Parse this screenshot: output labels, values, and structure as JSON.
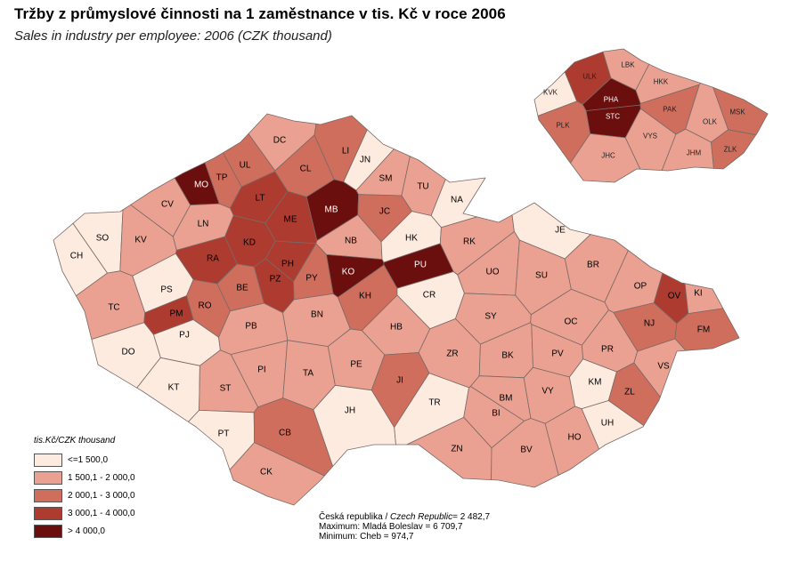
{
  "title": "Tržby z průmyslové činnosti na 1 zaměstnance v tis. Kč v roce 2006",
  "subtitle": "Sales in industry per employee: 2006 (CZK thousand)",
  "colors": {
    "class1": "#fdebe0",
    "class2": "#eba191",
    "class3": "#cf6e5d",
    "class4": "#ad3b2f",
    "class5": "#6a0e0e",
    "border": "#7a6a66"
  },
  "legend": {
    "title": "tis.Kč/CZK thousand",
    "items": [
      {
        "label": "<=1 500,0",
        "class": "class1"
      },
      {
        "label": "1 500,1 - 2 000,0",
        "class": "class2"
      },
      {
        "label": "2 000,1 - 3 000,0",
        "class": "class3"
      },
      {
        "label": "3 000,1 - 4 000,0",
        "class": "class4"
      },
      {
        "label": "> 4 000,0",
        "class": "class5"
      }
    ]
  },
  "stats": {
    "republic_label": "Česká republika /",
    "republic_label_en": "Czech Republic",
    "republic_value": "= 2 482,7",
    "max_line": "Maximum: Mladá Boleslav =  6 709,7",
    "min_line": "Minimum: Cheb = 974,7"
  },
  "districts": [
    {
      "code": "CH",
      "class": "class1"
    },
    {
      "code": "SO",
      "class": "class1"
    },
    {
      "code": "KV",
      "class": "class2"
    },
    {
      "code": "CV",
      "class": "class2"
    },
    {
      "code": "MO",
      "class": "class5"
    },
    {
      "code": "TP",
      "class": "class3"
    },
    {
      "code": "UL",
      "class": "class3"
    },
    {
      "code": "DC",
      "class": "class2"
    },
    {
      "code": "CL",
      "class": "class3"
    },
    {
      "code": "LI",
      "class": "class3"
    },
    {
      "code": "JN",
      "class": "class1"
    },
    {
      "code": "LT",
      "class": "class4"
    },
    {
      "code": "ME",
      "class": "class4"
    },
    {
      "code": "MB",
      "class": "class5"
    },
    {
      "code": "SM",
      "class": "class2"
    },
    {
      "code": "TU",
      "class": "class2"
    },
    {
      "code": "NA",
      "class": "class1"
    },
    {
      "code": "JC",
      "class": "class3"
    },
    {
      "code": "LN",
      "class": "class2"
    },
    {
      "code": "KD",
      "class": "class4"
    },
    {
      "code": "RA",
      "class": "class4"
    },
    {
      "code": "PH",
      "class": "class4"
    },
    {
      "code": "NB",
      "class": "class2"
    },
    {
      "code": "HK",
      "class": "class1"
    },
    {
      "code": "RK",
      "class": "class2"
    },
    {
      "code": "JE",
      "class": "class1"
    },
    {
      "code": "TC",
      "class": "class2"
    },
    {
      "code": "PS",
      "class": "class1"
    },
    {
      "code": "RO",
      "class": "class3"
    },
    {
      "code": "BE",
      "class": "class3"
    },
    {
      "code": "PZ",
      "class": "class4"
    },
    {
      "code": "PY",
      "class": "class3"
    },
    {
      "code": "KO",
      "class": "class5"
    },
    {
      "code": "PU",
      "class": "class5"
    },
    {
      "code": "KH",
      "class": "class3"
    },
    {
      "code": "CR",
      "class": "class1"
    },
    {
      "code": "UO",
      "class": "class2"
    },
    {
      "code": "SU",
      "class": "class2"
    },
    {
      "code": "BR",
      "class": "class2"
    },
    {
      "code": "OP",
      "class": "class2"
    },
    {
      "code": "OV",
      "class": "class4"
    },
    {
      "code": "KI",
      "class": "class2"
    },
    {
      "code": "PM",
      "class": "class4"
    },
    {
      "code": "PJ",
      "class": "class1"
    },
    {
      "code": "DO",
      "class": "class1"
    },
    {
      "code": "KT",
      "class": "class1"
    },
    {
      "code": "PB",
      "class": "class2"
    },
    {
      "code": "BN",
      "class": "class2"
    },
    {
      "code": "HB",
      "class": "class2"
    },
    {
      "code": "SY",
      "class": "class2"
    },
    {
      "code": "OC",
      "class": "class2"
    },
    {
      "code": "NJ",
      "class": "class3"
    },
    {
      "code": "FM",
      "class": "class3"
    },
    {
      "code": "PI",
      "class": "class2"
    },
    {
      "code": "TA",
      "class": "class2"
    },
    {
      "code": "PE",
      "class": "class2"
    },
    {
      "code": "ZR",
      "class": "class2"
    },
    {
      "code": "BK",
      "class": "class2"
    },
    {
      "code": "PV",
      "class": "class2"
    },
    {
      "code": "PR",
      "class": "class2"
    },
    {
      "code": "VS",
      "class": "class2"
    },
    {
      "code": "ST",
      "class": "class2"
    },
    {
      "code": "JI",
      "class": "class3"
    },
    {
      "code": "BM",
      "class": "class2"
    },
    {
      "code": "VY",
      "class": "class2"
    },
    {
      "code": "KM",
      "class": "class1"
    },
    {
      "code": "ZL",
      "class": "class3"
    },
    {
      "code": "JH",
      "class": "class1"
    },
    {
      "code": "TR",
      "class": "class1"
    },
    {
      "code": "BI",
      "class": "class2"
    },
    {
      "code": "UH",
      "class": "class1"
    },
    {
      "code": "PT",
      "class": "class1"
    },
    {
      "code": "CB",
      "class": "class3"
    },
    {
      "code": "ZN",
      "class": "class2"
    },
    {
      "code": "BV",
      "class": "class2"
    },
    {
      "code": "HO",
      "class": "class2"
    },
    {
      "code": "CK",
      "class": "class2"
    }
  ],
  "regions": [
    {
      "code": "KVK",
      "class": "class1"
    },
    {
      "code": "ULK",
      "class": "class4"
    },
    {
      "code": "LBK",
      "class": "class2"
    },
    {
      "code": "HKK",
      "class": "class2"
    },
    {
      "code": "PHA",
      "class": "class5"
    },
    {
      "code": "STC",
      "class": "class5"
    },
    {
      "code": "PLK",
      "class": "class3"
    },
    {
      "code": "PAK",
      "class": "class3"
    },
    {
      "code": "OLK",
      "class": "class2"
    },
    {
      "code": "MSK",
      "class": "class3"
    },
    {
      "code": "VYS",
      "class": "class2"
    },
    {
      "code": "JHC",
      "class": "class2"
    },
    {
      "code": "JHM",
      "class": "class2"
    },
    {
      "code": "ZLK",
      "class": "class3"
    }
  ]
}
